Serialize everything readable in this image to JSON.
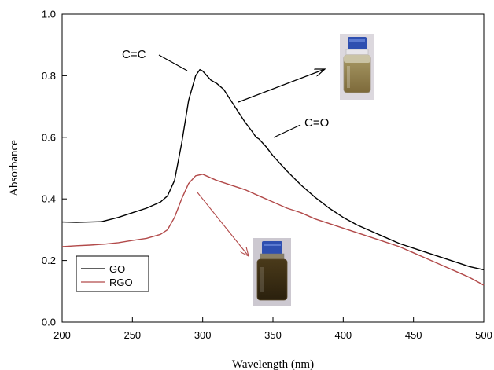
{
  "chart_data": {
    "type": "line",
    "xlabel": "Wavelength (nm)",
    "ylabel": "Absorbance",
    "xlim": [
      200,
      500
    ],
    "ylim": [
      0.0,
      1.0
    ],
    "x_ticks": [
      200,
      250,
      300,
      350,
      400,
      450,
      500
    ],
    "y_ticks": [
      "0.0",
      "0.2",
      "0.4",
      "0.6",
      "0.8",
      "1.0"
    ],
    "grid": false,
    "legend_position": "bottom-left",
    "series": [
      {
        "name": "GO",
        "color": "#000000",
        "x": [
          200,
          210,
          220,
          228,
          240,
          250,
          260,
          270,
          275,
          280,
          285,
          290,
          295,
          298,
          300,
          303,
          306,
          310,
          315,
          320,
          325,
          330,
          335,
          338,
          340,
          345,
          350,
          360,
          370,
          380,
          390,
          400,
          410,
          420,
          430,
          440,
          450,
          460,
          470,
          480,
          490,
          500
        ],
        "y": [
          0.325,
          0.324,
          0.325,
          0.326,
          0.34,
          0.355,
          0.37,
          0.39,
          0.41,
          0.46,
          0.58,
          0.72,
          0.8,
          0.82,
          0.815,
          0.8,
          0.785,
          0.775,
          0.755,
          0.72,
          0.685,
          0.65,
          0.62,
          0.6,
          0.595,
          0.57,
          0.54,
          0.49,
          0.445,
          0.405,
          0.37,
          0.34,
          0.315,
          0.295,
          0.275,
          0.255,
          0.24,
          0.225,
          0.21,
          0.195,
          0.18,
          0.17
        ]
      },
      {
        "name": "RGO",
        "color": "#b24a4a",
        "x": [
          200,
          210,
          220,
          230,
          240,
          250,
          260,
          270,
          275,
          280,
          285,
          290,
          295,
          300,
          305,
          310,
          320,
          330,
          340,
          350,
          360,
          370,
          380,
          390,
          400,
          410,
          420,
          430,
          440,
          450,
          460,
          470,
          480,
          490,
          500
        ],
        "y": [
          0.245,
          0.248,
          0.25,
          0.253,
          0.258,
          0.265,
          0.272,
          0.285,
          0.3,
          0.34,
          0.4,
          0.45,
          0.475,
          0.48,
          0.47,
          0.46,
          0.445,
          0.43,
          0.41,
          0.39,
          0.37,
          0.355,
          0.335,
          0.32,
          0.305,
          0.29,
          0.275,
          0.26,
          0.245,
          0.225,
          0.205,
          0.185,
          0.165,
          0.145,
          0.12
        ]
      }
    ],
    "annotations": [
      {
        "text": "C=C",
        "x": 276,
        "y": 0.885
      },
      {
        "text": "C=O",
        "x": 360,
        "y": 0.645
      }
    ]
  }
}
